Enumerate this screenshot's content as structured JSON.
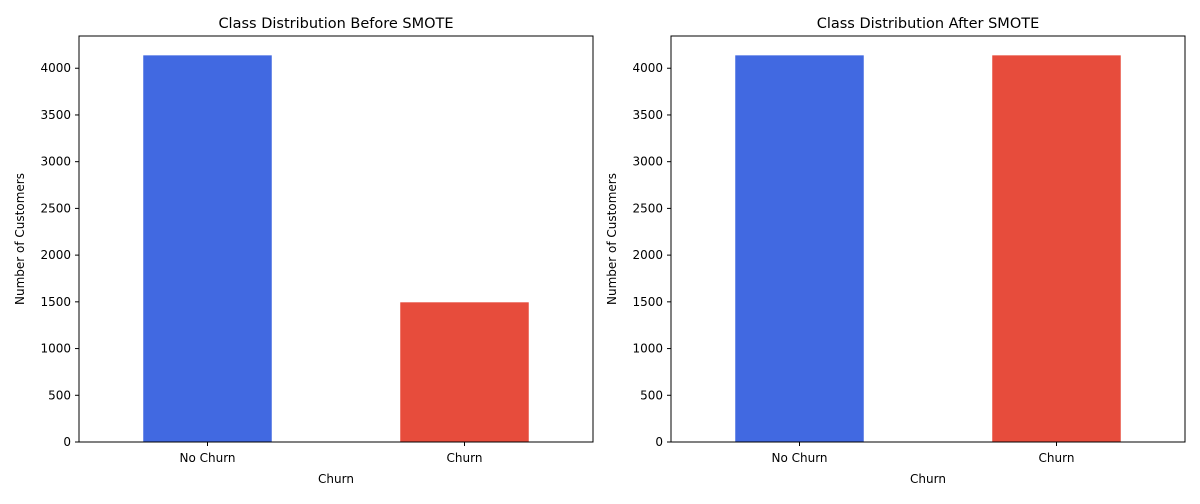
{
  "chart_data": [
    {
      "type": "bar",
      "title": "Class Distribution Before SMOTE",
      "xlabel": "Churn",
      "ylabel": "Number of Customers",
      "categories": [
        "No Churn",
        "Churn"
      ],
      "values": [
        4138,
        1495
      ],
      "colors": [
        "#4169e1",
        "#e74c3c"
      ],
      "ylim": [
        0,
        4345
      ],
      "yticks": [
        0,
        500,
        1000,
        1500,
        2000,
        2500,
        3000,
        3500,
        4000
      ],
      "grid": false
    },
    {
      "type": "bar",
      "title": "Class Distribution After SMOTE",
      "xlabel": "Churn",
      "ylabel": "Number of Customers",
      "categories": [
        "No Churn",
        "Churn"
      ],
      "values": [
        4138,
        4138
      ],
      "colors": [
        "#4169e1",
        "#e74c3c"
      ],
      "ylim": [
        0,
        4345
      ],
      "yticks": [
        0,
        500,
        1000,
        1500,
        2000,
        2500,
        3000,
        3500,
        4000
      ],
      "grid": false
    }
  ]
}
